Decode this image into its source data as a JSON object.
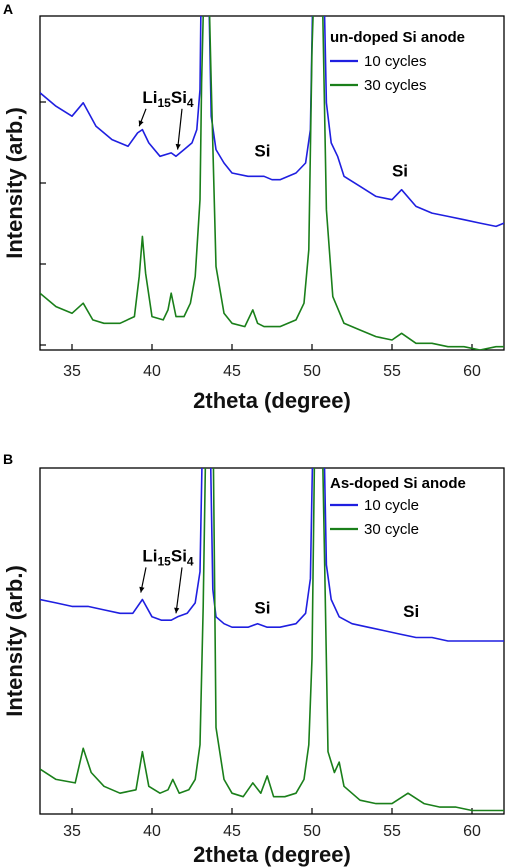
{
  "chart_data": [
    {
      "type": "line",
      "panel_label": "A",
      "xlabel": "2theta (degree)",
      "ylabel": "Intensity (arb.)",
      "xlim": [
        33,
        62
      ],
      "xticks": [
        35,
        40,
        45,
        50,
        55,
        60
      ],
      "legend": {
        "title": "un-doped Si anode",
        "placement": "top-right"
      },
      "series": [
        {
          "name": "10 cycles",
          "color": "#1f1fe0",
          "x": [
            33.0,
            34.0,
            35.0,
            35.7,
            36.5,
            37.5,
            38.5,
            39.1,
            39.4,
            39.8,
            40.5,
            41.2,
            41.5,
            42.0,
            42.5,
            42.8,
            43.0,
            43.1,
            43.3,
            43.5,
            43.7,
            44.0,
            44.5,
            45.0,
            46.0,
            47.0,
            47.5,
            48.0,
            49.0,
            49.6,
            49.9,
            50.1,
            50.3,
            50.5,
            50.7,
            50.9,
            51.2,
            51.6,
            52.0,
            53.0,
            54.0,
            55.0,
            55.6,
            56.5,
            57.5,
            58.5,
            59.5,
            60.5,
            61.5,
            62.0
          ],
          "y": [
            0.77,
            0.73,
            0.7,
            0.74,
            0.67,
            0.63,
            0.61,
            0.65,
            0.66,
            0.62,
            0.58,
            0.59,
            0.58,
            0.6,
            0.62,
            0.66,
            0.78,
            1.2,
            1.2,
            1.2,
            0.7,
            0.6,
            0.56,
            0.53,
            0.52,
            0.52,
            0.51,
            0.51,
            0.53,
            0.56,
            0.66,
            1.2,
            1.2,
            1.2,
            1.2,
            0.74,
            0.62,
            0.58,
            0.52,
            0.49,
            0.46,
            0.45,
            0.48,
            0.43,
            0.41,
            0.4,
            0.39,
            0.38,
            0.37,
            0.38
          ]
        },
        {
          "name": "30 cycles",
          "color": "#1a7f1a",
          "x": [
            33.0,
            34.0,
            35.0,
            35.7,
            36.3,
            37.0,
            38.0,
            38.9,
            39.2,
            39.4,
            39.6,
            40.0,
            40.7,
            41.0,
            41.2,
            41.5,
            42.0,
            42.4,
            42.7,
            43.0,
            43.1,
            43.3,
            43.5,
            43.7,
            44.0,
            44.5,
            45.0,
            45.8,
            46.3,
            46.6,
            47.0,
            48.0,
            49.0,
            49.5,
            49.8,
            50.0,
            50.2,
            50.4,
            50.6,
            50.9,
            51.3,
            52.0,
            53.0,
            54.0,
            55.0,
            55.6,
            56.5,
            57.5,
            58.5,
            59.5,
            60.5,
            61.5,
            62.0
          ],
          "y": [
            0.17,
            0.13,
            0.11,
            0.14,
            0.09,
            0.08,
            0.08,
            0.1,
            0.22,
            0.34,
            0.23,
            0.1,
            0.09,
            0.12,
            0.17,
            0.1,
            0.1,
            0.14,
            0.22,
            0.45,
            0.8,
            1.2,
            1.2,
            0.8,
            0.25,
            0.11,
            0.08,
            0.07,
            0.12,
            0.08,
            0.07,
            0.07,
            0.09,
            0.14,
            0.3,
            0.9,
            1.2,
            1.2,
            1.2,
            0.42,
            0.16,
            0.08,
            0.06,
            0.04,
            0.03,
            0.05,
            0.02,
            0.02,
            0.01,
            0.01,
            0.0,
            0.01,
            0.01
          ]
        }
      ],
      "annotations": [
        {
          "base": "Li",
          "sub1": "15",
          "mid": "Si",
          "sub2": "4",
          "x": 41.0,
          "y": 0.74
        },
        {
          "text": "Si",
          "x": 46.9,
          "y": 0.58
        },
        {
          "text": "Si",
          "x": 55.5,
          "y": 0.52
        }
      ]
    },
    {
      "type": "line",
      "panel_label": "B",
      "xlabel": "2theta (degree)",
      "ylabel": "Intensity (arb.)",
      "xlim": [
        33,
        62
      ],
      "xticks": [
        35,
        40,
        45,
        50,
        55,
        60
      ],
      "legend": {
        "title": "As-doped Si anode",
        "placement": "top-right"
      },
      "series": [
        {
          "name": "10 cycle",
          "color": "#1f1fe0",
          "x": [
            33.0,
            34.0,
            35.0,
            36.0,
            37.0,
            38.0,
            38.8,
            39.4,
            40.0,
            40.6,
            41.2,
            41.6,
            42.2,
            42.7,
            43.0,
            43.2,
            43.4,
            43.6,
            43.8,
            44.0,
            44.5,
            45.0,
            46.0,
            46.6,
            47.2,
            48.0,
            49.0,
            49.6,
            49.9,
            50.1,
            50.3,
            50.5,
            50.7,
            50.9,
            51.2,
            51.7,
            52.5,
            53.5,
            54.5,
            55.5,
            56.5,
            57.5,
            58.5,
            59.5,
            60.5,
            61.5,
            62.0
          ],
          "y": [
            0.62,
            0.61,
            0.6,
            0.6,
            0.59,
            0.58,
            0.58,
            0.62,
            0.57,
            0.56,
            0.56,
            0.57,
            0.58,
            0.61,
            0.7,
            1.2,
            1.2,
            1.2,
            0.65,
            0.57,
            0.55,
            0.54,
            0.54,
            0.55,
            0.54,
            0.54,
            0.55,
            0.58,
            0.68,
            1.2,
            1.2,
            1.2,
            1.2,
            0.72,
            0.62,
            0.57,
            0.55,
            0.54,
            0.53,
            0.52,
            0.51,
            0.51,
            0.5,
            0.5,
            0.5,
            0.5,
            0.5
          ]
        },
        {
          "name": "30 cycle",
          "color": "#1a7f1a",
          "x": [
            33.0,
            34.0,
            35.2,
            35.7,
            36.2,
            37.0,
            38.0,
            39.0,
            39.4,
            39.8,
            40.5,
            41.0,
            41.3,
            41.7,
            42.3,
            42.7,
            43.0,
            43.2,
            43.4,
            43.6,
            43.8,
            44.0,
            44.5,
            45.0,
            45.7,
            46.3,
            46.8,
            47.2,
            47.6,
            48.3,
            49.0,
            49.5,
            49.8,
            50.0,
            50.2,
            50.4,
            50.6,
            50.8,
            51.0,
            51.4,
            51.7,
            52.0,
            53.0,
            54.0,
            55.0,
            56.0,
            57.0,
            58.0,
            59.0,
            60.0,
            61.0,
            62.0
          ],
          "y": [
            0.13,
            0.1,
            0.09,
            0.19,
            0.12,
            0.08,
            0.06,
            0.07,
            0.18,
            0.08,
            0.06,
            0.07,
            0.1,
            0.06,
            0.07,
            0.1,
            0.2,
            0.6,
            1.2,
            1.2,
            1.2,
            0.25,
            0.1,
            0.06,
            0.05,
            0.09,
            0.06,
            0.11,
            0.05,
            0.05,
            0.06,
            0.1,
            0.2,
            0.45,
            1.2,
            1.2,
            1.2,
            0.7,
            0.18,
            0.12,
            0.15,
            0.08,
            0.04,
            0.03,
            0.03,
            0.06,
            0.03,
            0.02,
            0.02,
            0.01,
            0.01,
            0.01
          ]
        }
      ],
      "annotations": [
        {
          "base": "Li",
          "sub1": "15",
          "mid": "Si",
          "sub2": "4",
          "x": 41.0,
          "y": 0.73
        },
        {
          "text": "Si",
          "x": 46.9,
          "y": 0.58
        },
        {
          "text": "Si",
          "x": 56.2,
          "y": 0.57
        }
      ]
    }
  ]
}
